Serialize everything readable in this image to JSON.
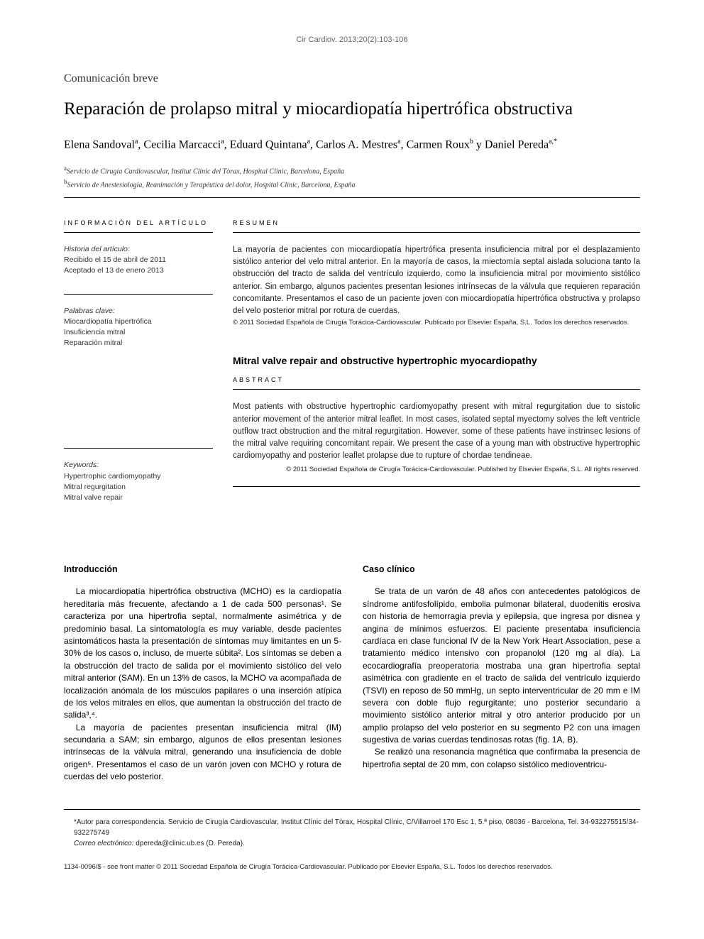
{
  "citation": "Cir Cardiov. 2013;20(2):103-106",
  "article_type": "Comunicación breve",
  "title": "Reparación de prolapso mitral y miocardiopatía hipertrófica obstructiva",
  "authors_html": "Elena Sandoval<sup>a</sup>, Cecilia Marcacci<sup>a</sup>, Eduard Quintana<sup>a</sup>, Carlos A. Mestres<sup>a</sup>, Carmen Roux<sup>b</sup> y Daniel Pereda<sup>a,*</sup>",
  "affiliations": [
    {
      "sup": "a",
      "text": "Servicio de Cirugía Cardiovascular, Institut Clínic del Tòrax, Hospital Clínic, Barcelona, España"
    },
    {
      "sup": "b",
      "text": "Servicio de Anestesiología, Reanimación y Terapéutica del dolor, Hospital Clínic, Barcelona, España"
    }
  ],
  "info_label": "INFORMACIÓN DEL ARTÍCULO",
  "history": {
    "label": "Historia del artículo:",
    "received": "Recibido el 15 de abril de 2011",
    "accepted": "Aceptado el 13 de enero 2013"
  },
  "palabras_label": "Palabras clave:",
  "palabras": [
    "Miocardiopatía hipertrófica",
    "Insuficiencia mitral",
    "Reparación mitral"
  ],
  "keywords_label": "Keywords:",
  "keywords": [
    "Hypertrophic cardiomyopathy",
    "Mitral regurgitation",
    "Mitral valve repair"
  ],
  "resumen_label": "RESUMEN",
  "resumen_text": "La mayoría de pacientes con miocardiopatía hipertrófica presenta insuficiencia mitral por el desplazamiento sistólico anterior del velo mitral anterior. En la mayoría de casos, la miectomía septal aislada soluciona tanto la obstrucción del tracto de salida del ventrículo izquierdo, como la insuficiencia mitral por movimiento sistólico anterior. Sin embargo, algunos pacientes presentan lesiones intrínsecas de la válvula que requieren reparación concomitante. Presentamos el caso de un paciente joven con miocardiopatía hipertrófica obstructiva y prolapso del velo posterior mitral por rotura de cuerdas.",
  "resumen_copy": "© 2011 Sociedad Española de Cirugía Torácica-Cardiovascular. Publicado por Elsevier España, S.L. Todos los derechos reservados.",
  "en_title": "Mitral valve repair and obstructive hypertrophic myocardiopathy",
  "abstract_label": "ABSTRACT",
  "abstract_text": "Most patients with obstructive hypertrophic cardiomyopathy present with mitral regurgitation due to sistolic anterior movement of the anterior mitral leaflet. In most cases, isolated septal myectomy solves the left ventricle outflow tract obstruction and the mitral regurgitation. However, some of these patients have instrinsec lesions of the mitral valve requiring concomitant repair. We present the case of a young man with obstructive hypertrophic cardiomyopathy and posterior leaflet prolapse due to rupture of chordae tendineae.",
  "abstract_copy": "© 2011 Sociedad Española de Cirugía Torácica-Cardiovascular. Published by Elsevier España, S.L. All rights reserved.",
  "intro_heading": "Introducción",
  "intro_p1": "La miocardiopatía hipertrófica obstructiva (MCHO) es la cardiopatía hereditaria más frecuente, afectando a 1 de cada 500 personas¹. Se caracteriza por una hipertrofia septal, normalmente asimétrica y de predominio basal. La sintomatología es muy variable, desde pacientes asintomáticos hasta la presentación de síntomas muy limitantes en un 5-30% de los casos o, incluso, de muerte súbita². Los síntomas se deben a la obstrucción del tracto de salida por el movimiento sistólico del velo mitral anterior (SAM). En un 13% de casos, la MCHO va acompañada de localización anómala de los músculos papilares o una inserción atípica de los velos mitrales en ellos, que aumentan la obstrucción del tracto de salida³,⁴.",
  "intro_p2": "La mayoría de pacientes presentan insuficiencia mitral (IM) secundaria a SAM; sin embargo, algunos de ellos presentan lesiones intrínsecas de la válvula mitral, generando una insuficiencia de doble origen⁵. Presentamos el caso de un varón joven con MCHO y rotura de cuerdas del velo posterior.",
  "caso_heading": "Caso clínico",
  "caso_p1": "Se trata de un varón de 48 años con antecedentes patológicos de síndrome antifosfolípido, embolia pulmonar bilateral, duodenitis erosiva con historia de hemorragia previa y epilepsia, que ingresa por disnea y angina de mínimos esfuerzos. El paciente presentaba insuficiencia cardíaca en clase funcional IV de la New York Heart Association, pese a tratamiento médico intensivo con propanolol (120 mg al día). La ecocardiografía preoperatoria mostraba una gran hipertrofia septal asimétrica con gradiente en el tracto de salida del ventrículo izquierdo (TSVI) en reposo de 50 mmHg, un septo interventricular de 20 mm e IM severa con doble flujo regurgitante; uno posterior secundario a movimiento sistólico anterior mitral y otro anterior producido por un amplio prolapso del velo posterior en su segmento P2 con una imagen sugestiva de varias cuerdas tendinosas rotas (fig. 1A, B).",
  "caso_p2": "Se realizó una resonancia magnética que confirmaba la presencia de hipertrofia septal de 20 mm, con colapso sistólico medioventricu-",
  "corr_text": "*Autor para correspondencia. Servicio de Cirugía Cardiovascular, Institut Clínic del Tòrax, Hospital Clínic, C/Villarroel 170 Esc 1, 5.ª piso, 08036 - Barcelona, Tel. 34-932275515/34-932275749",
  "corr_email_label": "Correo electrónico:",
  "corr_email": "dpereda@clinic.ub.es (D. Pereda).",
  "issn": "1134-0096/$ - see front matter © 2011 Sociedad Española de Cirugía Torácica-Cardiovascular. Publicado por Elsevier España, S.L. Todos los derechos reservados."
}
